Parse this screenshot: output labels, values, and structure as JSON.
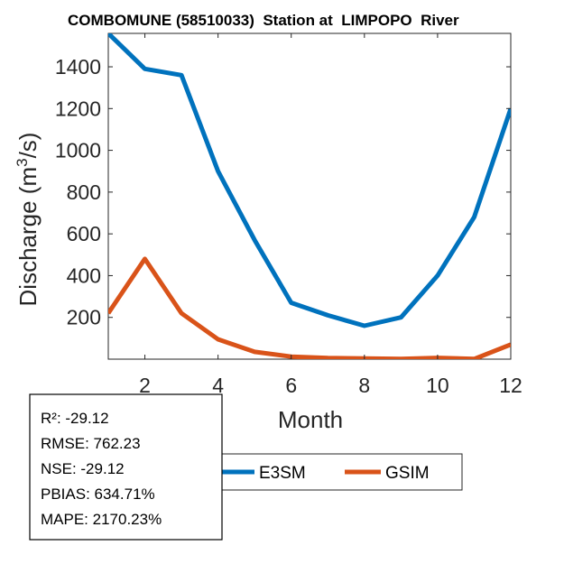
{
  "chart_data": {
    "type": "line",
    "title": "COMBOMUNE (58510033)  Station at  LIMPOPO  River",
    "xlabel": "Month",
    "ylabel_main": "Discharge (m",
    "ylabel_sup": "3",
    "ylabel_tail": "/s)",
    "xlim": [
      1,
      12
    ],
    "ylim": [
      0,
      1560
    ],
    "xticks": [
      2,
      4,
      6,
      8,
      10,
      12
    ],
    "yticks": [
      200,
      400,
      600,
      800,
      1000,
      1200,
      1400
    ],
    "x": [
      1,
      2,
      3,
      4,
      5,
      6,
      7,
      8,
      9,
      10,
      11,
      12
    ],
    "series": [
      {
        "name": "E3SM",
        "color": "#0072bd",
        "values": [
          1560,
          1390,
          1360,
          900,
          570,
          270,
          210,
          160,
          200,
          400,
          680,
          1200
        ]
      },
      {
        "name": "GSIM",
        "color": "#d95319",
        "values": [
          220,
          480,
          220,
          95,
          35,
          12,
          5,
          3,
          1,
          6,
          1,
          70
        ]
      }
    ],
    "legend_position": "bottom"
  },
  "stats": [
    "R²: -29.12",
    "RMSE: 762.23",
    "NSE: -29.12",
    "PBIAS: 634.71%",
    "MAPE: 2170.23%"
  ]
}
